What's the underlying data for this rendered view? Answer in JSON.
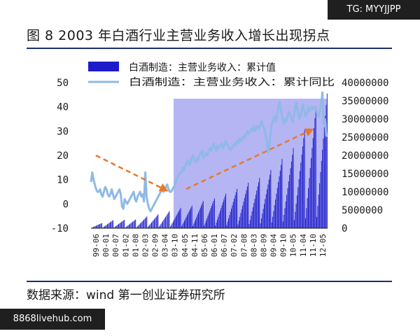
{
  "watermarks": {
    "top": "TG: MYYJJPP",
    "bottom": "8868livehub.com"
  },
  "figure_title": "图 8   2003 年白酒行业主营业务收入增长出现拐点",
  "source": "数据来源：wind  第一创业证券研究所",
  "colors": {
    "bar": "#1c1cc8",
    "line": "#8fb9e6",
    "shade": "#a8a8f2",
    "arrow": "#e8782a",
    "rule": "#1c2f6e"
  },
  "chart_data": {
    "type": "bar",
    "legend": [
      "白酒制造：主营业务收入：累计值",
      "白酒制造：主营业务收入：累计同比"
    ],
    "legend_position": "top",
    "left_axis": {
      "ticks": [
        "50",
        "40",
        "30",
        "20",
        "10",
        "0",
        "-10"
      ],
      "range": [
        -10,
        50
      ]
    },
    "right_axis": {
      "ticks": [
        "40000000",
        "35000000",
        "30000000",
        "25000000",
        "20000000",
        "15000000",
        "10000000",
        "5000000",
        "0"
      ],
      "range": [
        0,
        40000000
      ]
    },
    "x_ticks": [
      "99-06",
      "00-01",
      "00-07",
      "01-02",
      "01-08",
      "02-03",
      "02-09",
      "03-04",
      "03-10",
      "04-05",
      "04-11",
      "05-06",
      "06-01",
      "06-07",
      "07-02",
      "07-08",
      "08-03",
      "08-09",
      "09-04",
      "09-10",
      "10-05",
      "11-04",
      "11-10",
      "12-05"
    ],
    "shaded_region": [
      "03-04",
      "12-05"
    ],
    "series": [
      {
        "name": "白酒制造：主营业务收入：累计值",
        "axis": "right",
        "type": "bar",
        "annual_peaks": [
          1400000,
          2200000,
          2300000,
          2400000,
          3200000,
          3800000,
          4700000,
          5600000,
          6200000,
          7500000,
          8200000,
          9500000,
          10800000,
          12500000,
          13800000,
          16000000,
          19000000,
          22000000,
          27000000,
          33000000,
          37000000
        ]
      },
      {
        "name": "白酒制造：主营业务收入：累计同比",
        "axis": "left",
        "type": "line",
        "values": [
          9,
          13,
          10,
          8,
          6,
          5,
          5,
          6,
          4,
          3,
          5,
          7,
          6,
          4,
          3,
          4,
          6,
          4,
          2,
          3,
          4,
          5,
          6,
          4,
          -1,
          -2,
          2,
          1,
          0,
          1,
          2,
          3,
          4,
          5,
          2,
          1,
          3,
          4,
          5,
          3,
          4,
          1,
          13,
          3,
          0,
          -2,
          -3,
          -2,
          -1,
          0,
          1,
          2,
          3,
          4,
          5,
          6,
          5,
          6,
          7,
          8,
          6,
          5,
          5,
          6,
          7,
          8,
          10,
          11,
          12,
          13,
          13,
          15,
          14,
          16,
          17,
          18,
          16,
          17,
          19,
          20,
          18,
          17,
          19,
          18,
          20,
          21,
          22,
          19,
          20,
          21,
          20,
          22,
          23,
          22,
          24,
          25,
          23,
          22,
          24,
          23,
          24,
          25,
          23,
          24,
          26,
          25,
          24,
          23,
          22,
          23,
          24,
          25,
          24,
          26,
          25,
          27,
          26,
          27,
          28,
          27,
          29,
          30,
          29,
          30,
          31,
          30,
          32,
          30,
          32,
          32,
          31,
          33,
          34,
          32,
          31,
          29,
          26,
          21,
          24,
          30,
          33,
          35,
          36,
          34,
          37,
          40,
          42,
          38,
          36,
          33,
          35,
          34,
          36,
          38,
          37,
          35,
          34,
          36,
          40,
          42,
          38,
          35,
          36,
          39,
          41,
          38,
          36,
          37,
          40,
          38,
          39,
          40,
          39,
          40,
          40,
          37,
          36,
          38,
          41,
          46,
          33,
          35,
          28,
          29
        ]
      }
    ],
    "annotations": [
      "arrow-down-1999-2002",
      "arrow-up-2003-2011"
    ]
  }
}
